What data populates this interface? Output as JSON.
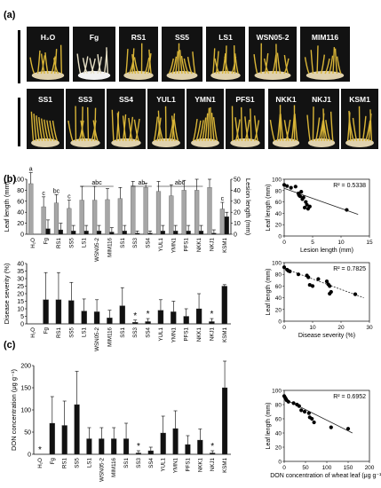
{
  "panel_labels": {
    "a": "(a)",
    "b": "(b)",
    "c": "(c)"
  },
  "photo_row1": [
    "H₂O",
    "Fg",
    "RS1",
    "SS5",
    "LS1",
    "WSN05-2",
    "MIM116"
  ],
  "photo_row2": [
    "SS1",
    "SS3",
    "SS4",
    "YUL1",
    "YMN1",
    "PFS1",
    "NKK1",
    "NKJ1",
    "KSM1"
  ],
  "chart_data": [
    {
      "type": "bar",
      "id": "b-top",
      "categories": [
        "H₂O",
        "Fg",
        "RS1",
        "SS5",
        "LS1",
        "WSN05-2",
        "MIM116",
        "SS1",
        "SS3",
        "SS4",
        "YUL1",
        "YMN1",
        "PFS1",
        "NKK1",
        "NKJ1",
        "KSM1"
      ],
      "series": [
        {
          "name": "",
          "color": "#a6a6a6",
          "axis": "left",
          "values": [
            92,
            50,
            57,
            47,
            62,
            62,
            63,
            65,
            88,
            85,
            78,
            70,
            80,
            80,
            85,
            46
          ],
          "errors": [
            20,
            18,
            15,
            15,
            25,
            25,
            20,
            20,
            8,
            8,
            18,
            20,
            18,
            20,
            15,
            12
          ]
        },
        {
          "name": "",
          "color": "#111111",
          "axis": "right",
          "values": [
            0,
            5,
            4,
            3,
            3,
            3,
            2,
            3,
            1,
            1,
            3,
            3,
            3,
            3,
            1,
            16
          ],
          "errors": [
            0,
            8,
            6,
            5,
            5,
            5,
            4,
            5,
            2,
            2,
            5,
            5,
            5,
            5,
            3,
            4
          ]
        }
      ],
      "letters": [
        {
          "text": "a",
          "at": 0
        },
        {
          "text": "c",
          "at": 1
        },
        {
          "text": "bc",
          "at": 2
        },
        {
          "text": "c",
          "at": 3
        },
        {
          "text": "abc",
          "from": 4,
          "to": 6
        },
        {
          "text": "ab",
          "from": 8,
          "to": 9
        },
        {
          "text": "abc",
          "from": 10,
          "to": 13
        },
        {
          "text": "c",
          "at": 15
        }
      ],
      "ylabel": "Leaf length (mm)",
      "ylim": [
        0,
        100
      ],
      "yticks": [
        0,
        20,
        40,
        60,
        80,
        100
      ],
      "y2label": "Lesion length (mm)",
      "y2lim": [
        0,
        50
      ],
      "y2ticks": [
        0,
        10,
        20,
        30,
        40,
        50
      ]
    },
    {
      "type": "bar",
      "id": "b-bottom",
      "categories": [
        "H₂O",
        "Fg",
        "RS1",
        "SS5",
        "LS1",
        "WSN05-2",
        "MIM116",
        "SS1",
        "SS3",
        "SS4",
        "YUL1",
        "YMN1",
        "PFS1",
        "NKK1",
        "NKJ1",
        "KSM1"
      ],
      "series": [
        {
          "name": "",
          "color": "#111111",
          "values": [
            0,
            16,
            16,
            15.5,
            8.5,
            8,
            4,
            12,
            1,
            1.5,
            9,
            8,
            5,
            10,
            1.5,
            25
          ],
          "errors": [
            0,
            18,
            18,
            12,
            8,
            8,
            5,
            12,
            1.5,
            2,
            7,
            7,
            5,
            10,
            2,
            1
          ]
        }
      ],
      "stars": [
        8,
        9,
        14
      ],
      "ylabel": "Disease severity (%)",
      "ylim": [
        0,
        40
      ],
      "yticks": [
        0,
        5,
        10,
        15,
        20,
        25,
        30,
        35,
        40
      ]
    },
    {
      "type": "bar",
      "id": "c-bar",
      "categories": [
        "H₂O",
        "Fg",
        "RS1",
        "SS5",
        "LS1",
        "WSN05-2",
        "MIM116",
        "SS1",
        "SS3",
        "SS4",
        "YUL1",
        "YMN1",
        "PFS1",
        "NKK1",
        "NKJ1",
        "KSM1"
      ],
      "series": [
        {
          "name": "",
          "color": "#111111",
          "values": [
            0,
            70,
            65,
            112,
            35,
            35,
            35,
            35,
            3,
            8,
            48,
            58,
            22,
            32,
            3,
            150
          ],
          "errors": [
            0,
            60,
            55,
            75,
            25,
            25,
            25,
            35,
            5,
            8,
            38,
            40,
            20,
            25,
            5,
            60
          ]
        }
      ],
      "stars": [
        0,
        8,
        14
      ],
      "ylabel": "DON concentration (μg g⁻¹)",
      "ylim": [
        0,
        200
      ],
      "yticks": [
        0,
        50,
        100,
        150,
        200
      ]
    },
    {
      "type": "scatter",
      "id": "b-scatter-1",
      "points": [
        [
          0,
          90
        ],
        [
          0.5,
          88
        ],
        [
          1.2,
          85
        ],
        [
          2,
          87
        ],
        [
          2.5,
          75
        ],
        [
          3,
          78
        ],
        [
          2.8,
          70
        ],
        [
          3.4,
          68
        ],
        [
          3.2,
          65
        ],
        [
          3.8,
          60
        ],
        [
          4,
          55
        ],
        [
          4.5,
          52
        ],
        [
          3.6,
          50
        ],
        [
          4.2,
          48
        ],
        [
          2.6,
          72
        ],
        [
          11,
          46
        ]
      ],
      "trend": [
        [
          0,
          84
        ],
        [
          13,
          38
        ]
      ],
      "trend_style": "solid",
      "r2": "R² = 0.5338",
      "xlabel": "Lesion length (mm)",
      "ylabel": "Leaf length (mm)",
      "xlim": [
        0,
        15
      ],
      "xticks": [
        0,
        5,
        10,
        15
      ],
      "ylim": [
        0,
        100
      ],
      "yticks": [
        0,
        20,
        40,
        60,
        80,
        100
      ]
    },
    {
      "type": "scatter",
      "id": "b-scatter-2",
      "points": [
        [
          0,
          92
        ],
        [
          1,
          88
        ],
        [
          1.5,
          86
        ],
        [
          2,
          85
        ],
        [
          5,
          80
        ],
        [
          8,
          78
        ],
        [
          8.5,
          75
        ],
        [
          9,
          62
        ],
        [
          10,
          60
        ],
        [
          12,
          72
        ],
        [
          15,
          68
        ],
        [
          15.5,
          63
        ],
        [
          16,
          60
        ],
        [
          16.5,
          50
        ],
        [
          16,
          47
        ],
        [
          25,
          46
        ]
      ],
      "trend": [
        [
          0,
          90
        ],
        [
          28,
          40
        ]
      ],
      "trend_style": "dashed",
      "r2": "R² = 0.7825",
      "xlabel": "Disease severity (%)",
      "ylabel": "Leaf length (mm)",
      "xlim": [
        0,
        30
      ],
      "xticks": [
        0,
        10,
        20,
        30
      ],
      "ylim": [
        0,
        100
      ],
      "yticks": [
        0,
        20,
        40,
        60,
        80,
        100
      ]
    },
    {
      "type": "scatter",
      "id": "c-scatter",
      "points": [
        [
          0,
          92
        ],
        [
          2,
          90
        ],
        [
          4,
          88
        ],
        [
          6,
          86
        ],
        [
          10,
          84
        ],
        [
          22,
          82
        ],
        [
          30,
          80
        ],
        [
          35,
          78
        ],
        [
          40,
          72
        ],
        [
          48,
          70
        ],
        [
          58,
          68
        ],
        [
          60,
          62
        ],
        [
          65,
          60
        ],
        [
          70,
          55
        ],
        [
          110,
          48
        ],
        [
          150,
          46
        ]
      ],
      "trend": [
        [
          0,
          88
        ],
        [
          160,
          40
        ]
      ],
      "trend_style": "solid",
      "r2": "R² = 0.6952",
      "xlabel": "DON concentration of wheat leaf (μg g⁻¹)",
      "ylabel": "Leaf length (mm)",
      "xlim": [
        0,
        200
      ],
      "xticks": [
        0,
        50,
        100,
        150,
        200
      ],
      "ylim": [
        0,
        100
      ],
      "yticks": [
        0,
        20,
        40,
        60,
        80,
        100
      ]
    }
  ]
}
